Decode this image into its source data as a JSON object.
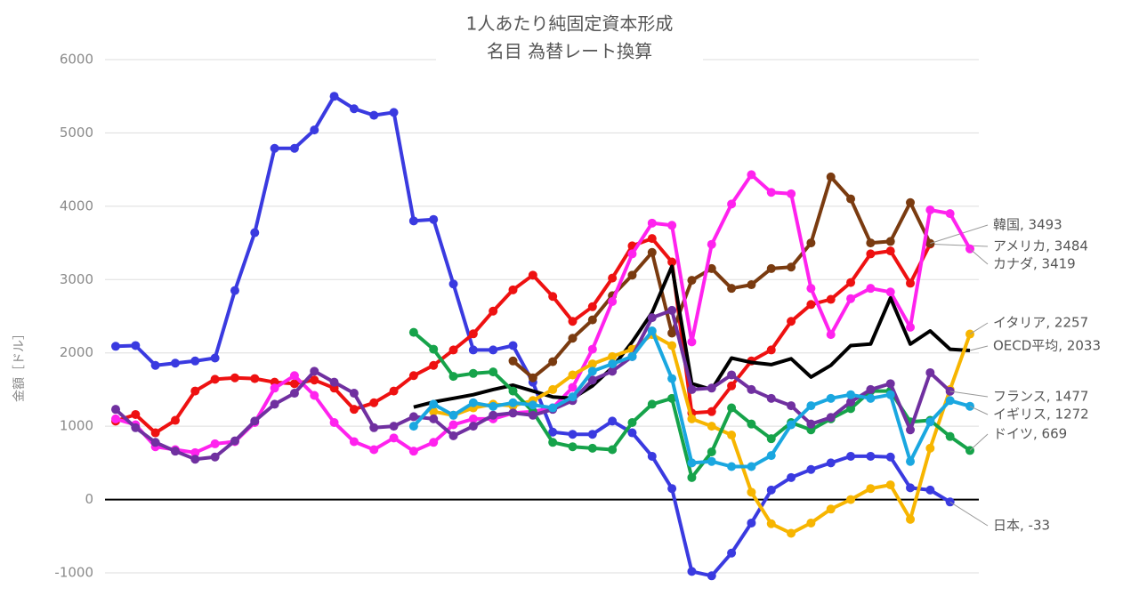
{
  "chart_data": {
    "type": "line",
    "title": "1人あたり純固定資本形成",
    "subtitle": "名目 為替レート換算",
    "y_label": "金額［ドル］",
    "categories": [
      null,
      null,
      null,
      null,
      null,
      null,
      null,
      null,
      null,
      null,
      null,
      null,
      null,
      null,
      null,
      null,
      null,
      null,
      null,
      null,
      null,
      null,
      null,
      null,
      null,
      null,
      null,
      null,
      null,
      null,
      null,
      null,
      null,
      null,
      null,
      null,
      null,
      null,
      null,
      null,
      null,
      null,
      null,
      null
    ],
    "ylim": [
      -1000,
      6000
    ],
    "yticks": [
      -1000,
      0,
      1000,
      2000,
      3000,
      4000,
      5000,
      6000
    ],
    "grid": true,
    "series": [
      {
        "name": "日本",
        "label": "日本, -33",
        "color": "#3a3ae0",
        "markers": true,
        "values": [
          2090,
          2100,
          1830,
          1860,
          1890,
          1930,
          2850,
          3640,
          4790,
          4790,
          5040,
          5500,
          5330,
          5240,
          5280,
          3800,
          3820,
          2940,
          2040,
          2040,
          2100,
          1600,
          920,
          890,
          890,
          1070,
          910,
          590,
          150,
          -980,
          -1040,
          -730,
          -320,
          130,
          300,
          410,
          500,
          590,
          590,
          580,
          160,
          130,
          -33,
          null
        ]
      },
      {
        "name": "アメリカ",
        "label": "アメリカ, 3484",
        "color": "#ee1111",
        "markers": true,
        "values": [
          1070,
          1160,
          910,
          1080,
          1480,
          1640,
          1660,
          1650,
          1600,
          1580,
          1630,
          1520,
          1230,
          1320,
          1480,
          1690,
          1830,
          2040,
          2260,
          2570,
          2860,
          3060,
          2770,
          2430,
          2630,
          3020,
          3460,
          3560,
          3240,
          1180,
          1200,
          1550,
          1890,
          2040,
          2430,
          2660,
          2730,
          2960,
          3350,
          3390,
          2950,
          3484,
          null,
          null
        ]
      },
      {
        "name": "韓国",
        "label": "韓国, 3493",
        "color": "#7a3b10",
        "markers": true,
        "values": [
          null,
          null,
          null,
          null,
          null,
          null,
          null,
          null,
          null,
          null,
          null,
          null,
          null,
          null,
          null,
          null,
          null,
          null,
          null,
          null,
          1890,
          1660,
          1880,
          2200,
          2450,
          2780,
          3060,
          3370,
          2270,
          2990,
          3150,
          2880,
          2930,
          3150,
          3170,
          3500,
          4400,
          4100,
          3500,
          3520,
          4050,
          3493,
          null,
          null
        ]
      },
      {
        "name": "カナダ",
        "label": "カナダ, 3419",
        "color": "#ff22ee",
        "markers": true,
        "values": [
          1100,
          1020,
          720,
          680,
          640,
          760,
          790,
          1050,
          1520,
          1690,
          1420,
          1050,
          790,
          680,
          840,
          660,
          780,
          1020,
          1100,
          1100,
          1180,
          1200,
          1250,
          1530,
          2050,
          2700,
          3350,
          3770,
          3740,
          2150,
          3480,
          4030,
          4430,
          4190,
          4170,
          2880,
          2250,
          2740,
          2880,
          2830,
          2350,
          3950,
          3900,
          3419
        ]
      },
      {
        "name": "OECD平均",
        "label": "OECD平均, 2033",
        "color": "#000000",
        "markers": false,
        "values": [
          null,
          null,
          null,
          null,
          null,
          null,
          null,
          null,
          null,
          null,
          null,
          null,
          null,
          null,
          null,
          1260,
          1330,
          1380,
          1430,
          1500,
          1560,
          1480,
          1400,
          1380,
          1550,
          1800,
          2150,
          2550,
          3180,
          1580,
          1500,
          1930,
          1870,
          1840,
          1920,
          1670,
          1830,
          2100,
          2120,
          2750,
          2120,
          2300,
          2050,
          2033
        ]
      },
      {
        "name": "イタリア",
        "label": "イタリア, 2257",
        "color": "#f7b500",
        "markers": true,
        "values": [
          null,
          null,
          null,
          null,
          null,
          null,
          null,
          null,
          null,
          null,
          null,
          null,
          null,
          null,
          null,
          null,
          1200,
          1150,
          1250,
          1300,
          1280,
          1350,
          1500,
          1700,
          1850,
          1950,
          2050,
          2250,
          2100,
          1100,
          1000,
          880,
          100,
          -330,
          -460,
          -320,
          -130,
          0,
          150,
          200,
          -270,
          700,
          1500,
          2257
        ]
      },
      {
        "name": "ドイツ",
        "label": "ドイツ, 669",
        "color": "#16a34a",
        "markers": true,
        "values": [
          null,
          null,
          null,
          null,
          null,
          null,
          null,
          null,
          null,
          null,
          null,
          null,
          null,
          null,
          null,
          2280,
          2050,
          1680,
          1720,
          1740,
          1480,
          1200,
          780,
          720,
          700,
          680,
          1050,
          1300,
          1380,
          300,
          650,
          1250,
          1030,
          830,
          1050,
          950,
          1100,
          1240,
          1480,
          1480,
          1060,
          1080,
          860,
          669
        ]
      },
      {
        "name": "フランス",
        "label": "フランス, 1477",
        "color": "#7030a0",
        "markers": true,
        "values": [
          1230,
          980,
          780,
          660,
          550,
          580,
          800,
          1070,
          1300,
          1450,
          1750,
          1600,
          1450,
          980,
          1000,
          1130,
          1100,
          870,
          1000,
          1150,
          1180,
          1150,
          1230,
          1350,
          1630,
          1750,
          1950,
          2480,
          2580,
          1500,
          1520,
          1700,
          1500,
          1380,
          1280,
          1030,
          1120,
          1330,
          1500,
          1580,
          950,
          1730,
          1477,
          null
        ]
      },
      {
        "name": "イギリス",
        "label": "イギリス, 1272",
        "color": "#1aa7e0",
        "markers": true,
        "values": [
          null,
          null,
          null,
          null,
          null,
          null,
          null,
          null,
          null,
          null,
          null,
          null,
          null,
          null,
          null,
          1000,
          1300,
          1150,
          1320,
          1270,
          1320,
          1290,
          1250,
          1400,
          1750,
          1850,
          1950,
          2300,
          1650,
          500,
          520,
          450,
          450,
          600,
          1020,
          1280,
          1380,
          1430,
          1380,
          1430,
          520,
          1060,
          1350,
          1272
        ]
      }
    ]
  }
}
